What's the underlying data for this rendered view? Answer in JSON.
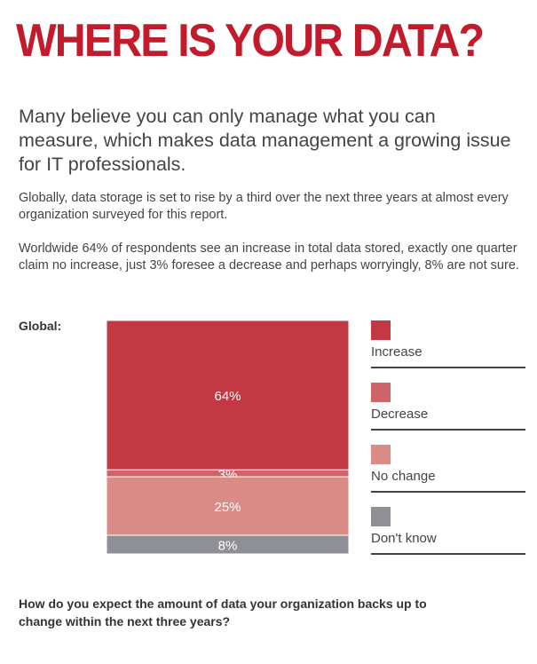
{
  "title": "WHERE IS YOUR DATA?",
  "lead": "Many believe you can only manage what you can measure, which makes data management a growing issue for IT professionals.",
  "paragraphs": [
    "Globally, data storage is set to rise by a third over the next three years at almost every organization surveyed for this report.",
    "Worldwide 64% of respondents see an increase in total data stored, exactly one quarter claim no increase, just 3% foresee a decrease and perhaps worryingly, 8% are not sure."
  ],
  "chart_data": {
    "type": "bar",
    "stacked": true,
    "label": "Global:",
    "categories": [
      "Global"
    ],
    "series": [
      {
        "name": "Increase",
        "values": [
          64
        ],
        "label": "64%",
        "color": "#c23843"
      },
      {
        "name": "Decrease",
        "values": [
          3
        ],
        "label": "3%",
        "color": "#cf6468"
      },
      {
        "name": "No change",
        "values": [
          25
        ],
        "label": "25%",
        "color": "#da8b85"
      },
      {
        "name": "Don't know",
        "values": [
          8
        ],
        "label": "8%",
        "color": "#8e9095"
      }
    ],
    "legend_placement": "right",
    "question": "How do you expect the amount of data your organization backs up to change within the next three years?"
  }
}
